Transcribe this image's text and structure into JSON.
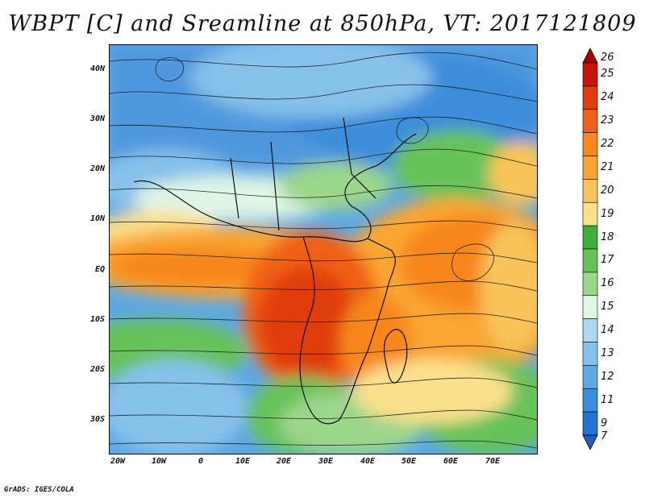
{
  "title": "WBPT [C] and Sreamline at 850hPa, VT: 2017121809",
  "credit": "GrADS: IGES/COLA",
  "lat_labels": [
    "40N",
    "30N",
    "20N",
    "10N",
    "EQ",
    "10S",
    "20S",
    "30S"
  ],
  "lon_labels": [
    "20W",
    "10W",
    "0",
    "10E",
    "20E",
    "30E",
    "40E",
    "50E",
    "60E",
    "70E"
  ],
  "colorbar": {
    "labels": [
      "26",
      "25",
      "24",
      "23",
      "22",
      "21",
      "20",
      "19",
      "18",
      "17",
      "16",
      "15",
      "14",
      "13",
      "12",
      "11",
      "9",
      "7"
    ],
    "colors": [
      "#a50000",
      "#c8140a",
      "#e03c10",
      "#f06018",
      "#f7871f",
      "#f9a630",
      "#f8c45a",
      "#fbe08c",
      "#3fae3f",
      "#68c25a",
      "#9bd68b",
      "#dff5e6",
      "#acd8f0",
      "#86c1ea",
      "#5ea8e3",
      "#3c8ddb",
      "#2472d2",
      "#1d5fc6"
    ]
  }
}
